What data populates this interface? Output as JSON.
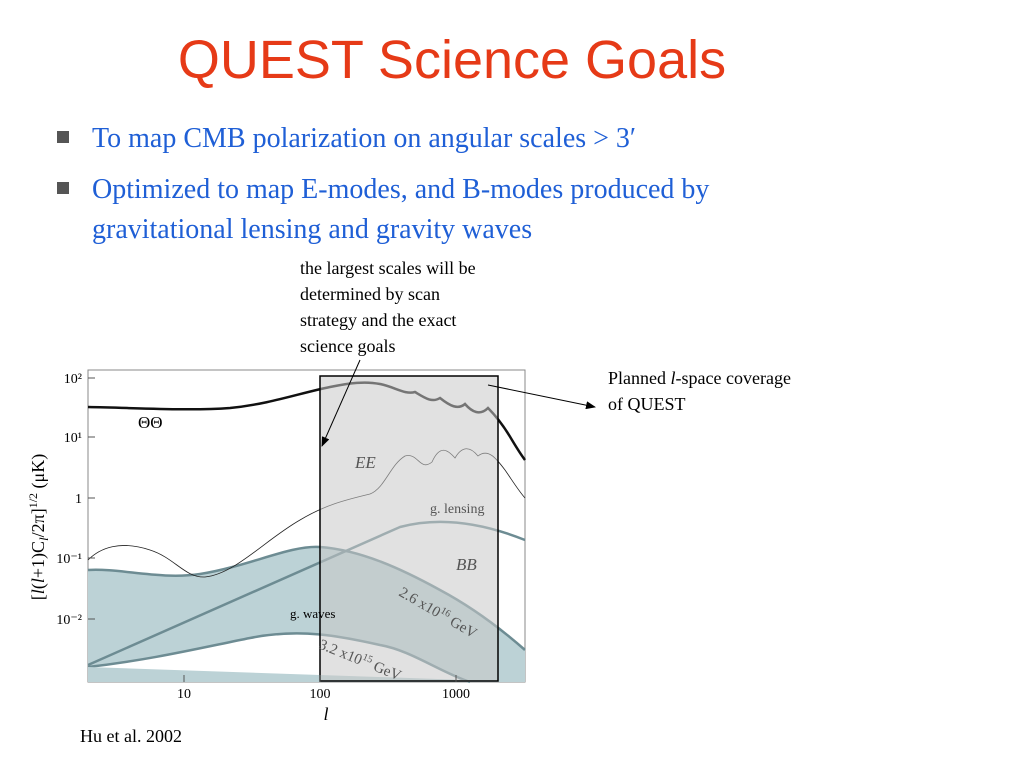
{
  "title": "QUEST Science Goals",
  "bullets": [
    "To map CMB polarization on  angular scales > 3′",
    "Optimized to map E-modes, and B-modes produced by",
    "gravitational lensing and gravity waves"
  ],
  "figure": {
    "annotation_top": [
      "the largest scales will be",
      "determined by scan",
      "strategy and the exact",
      "science goals"
    ],
    "annotation_right": [
      "Planned ",
      "l",
      "-space coverage",
      "of QUEST"
    ],
    "y_axis_label": [
      "[",
      "l",
      "(",
      "l",
      "+1)C",
      "l",
      "/2π]",
      "1/2",
      " (μK)"
    ],
    "x_axis_label": "l",
    "yticks": [
      "10²",
      "10¹",
      "1",
      "10⁻¹",
      "10⁻²"
    ],
    "xticks": [
      "10",
      "100",
      "1000"
    ],
    "curve_labels": {
      "tt": "ΘΘ",
      "ee": "EE",
      "lensing": "g. lensing",
      "bb": "BB",
      "waves": "g. waves",
      "high": [
        "2.6 x10",
        "16",
        " GeV"
      ],
      "low": [
        "3.2 x10",
        "15",
        " GeV"
      ]
    }
  },
  "citation": "Hu et al. 2002"
}
